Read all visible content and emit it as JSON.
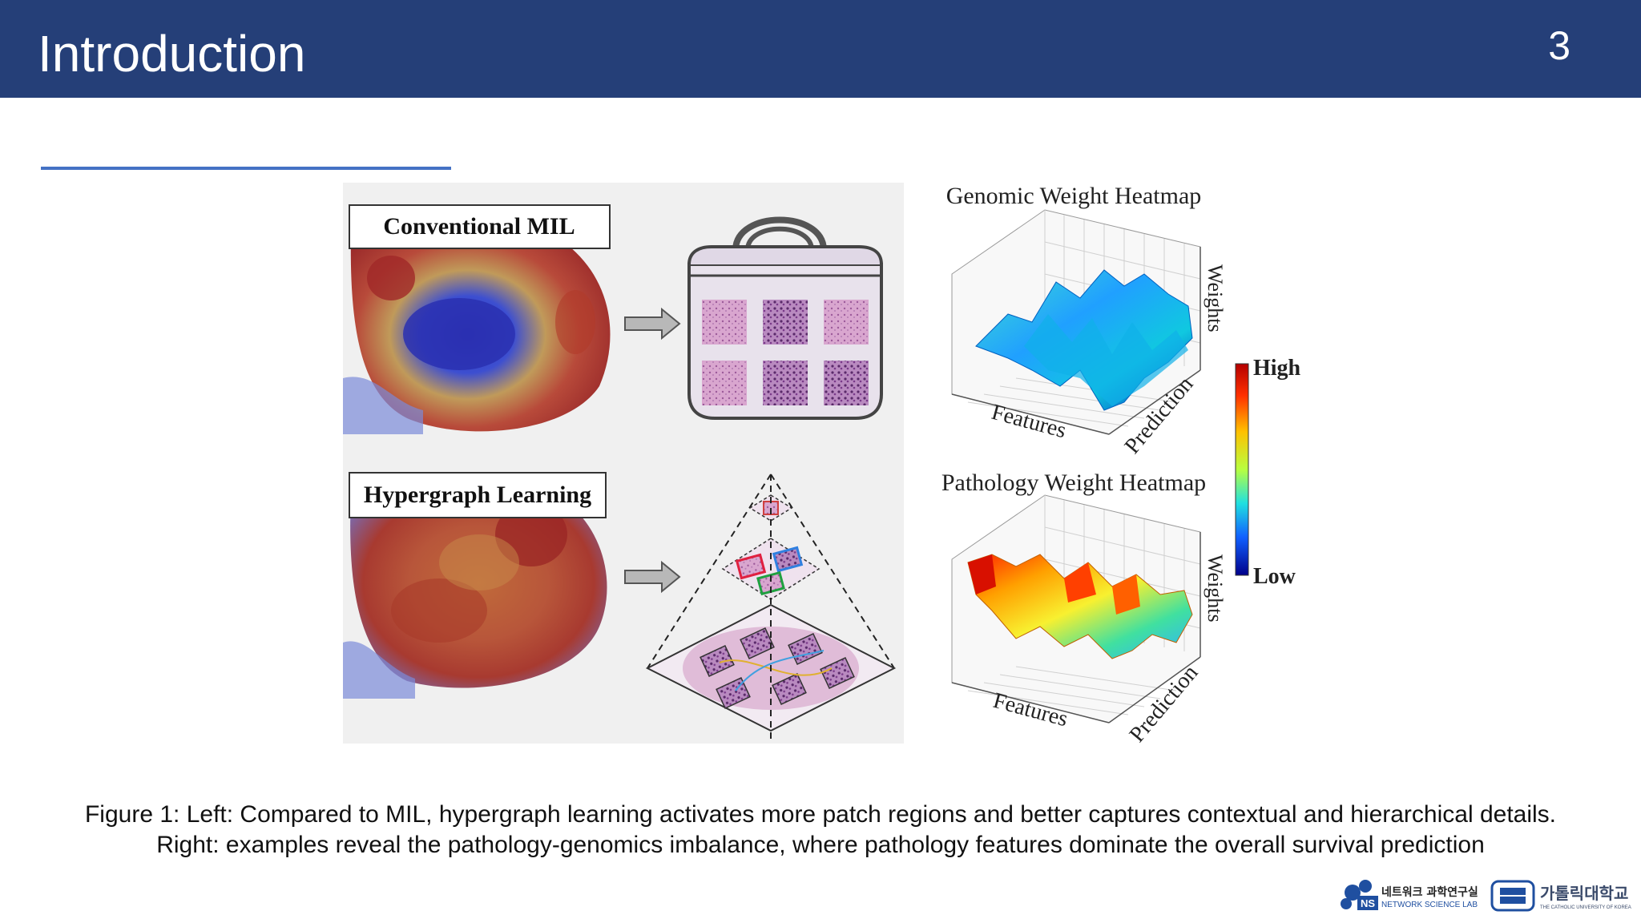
{
  "header": {
    "title": "Introduction",
    "page_number": "3"
  },
  "figure": {
    "left_panel": {
      "conventional_label": "Conventional MIL",
      "hypergraph_label": "Hypergraph Learning"
    },
    "right_panel": {
      "genomic_title": "Genomic Weight Heatmap",
      "pathology_title": "Pathology Weight Heatmap",
      "axis_weights": "Weights",
      "axis_features": "Features",
      "axis_prediction": "Prediction",
      "colorbar_high": "High",
      "colorbar_low": "Low"
    }
  },
  "caption": {
    "line1": "Figure 1: Left: Compared to MIL, hypergraph learning activates more patch regions and better captures contextual and hierarchical details.",
    "line2": "Right: examples reveal the pathology-genomics imbalance, where pathology features dominate the overall survival prediction"
  },
  "footer": {
    "lab_logo_text_kr": "네트워크 과학연구실",
    "lab_logo_text_en": "NETWORK SCIENCE LAB",
    "lab_logo_badge": "NS",
    "univ_logo_text_kr": "가톨릭대학교",
    "univ_logo_text_en": "THE CATHOLIC UNIVERSITY OF KOREA"
  },
  "colors": {
    "header_bg": "#253f78",
    "accent_line": "#4472c4"
  }
}
